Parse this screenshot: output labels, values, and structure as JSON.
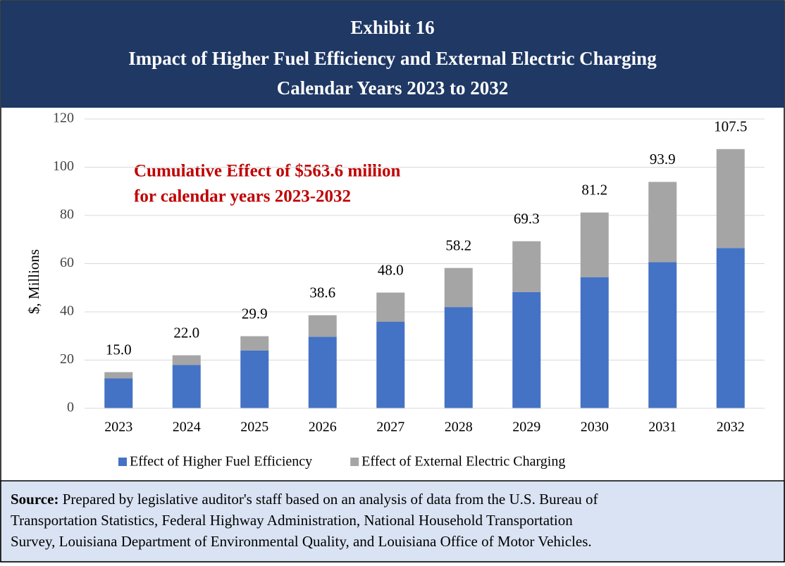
{
  "chart_data": {
    "type": "stacked_bar",
    "title": [
      "Exhibit 16",
      "Impact of Higher Fuel Efficiency and External Electric Charging",
      "Calendar Years 2023 to 2032"
    ],
    "ylabel": "$, Millions",
    "annotation": [
      "Cumulative Effect of $563.6 million",
      "for calendar years 2023-2032"
    ],
    "categories": [
      "2023",
      "2024",
      "2025",
      "2026",
      "2027",
      "2028",
      "2029",
      "2030",
      "2031",
      "2032"
    ],
    "series": [
      {
        "name": "Effect of Higher Fuel Efficiency",
        "color": "#4472c4",
        "values": [
          12.4,
          18,
          24,
          29.7,
          35.9,
          42,
          48.2,
          54.4,
          60.6,
          66.5
        ]
      },
      {
        "name": "Effect of External Electric Charging",
        "color": "#a5a5a5",
        "values": [
          2.6,
          4,
          5.9,
          8.9,
          12.1,
          16.2,
          21.1,
          26.8,
          33.3,
          41
        ]
      }
    ],
    "totals": [
      15,
      22,
      29.9,
      38.6,
      48,
      58.2,
      69.3,
      81.2,
      93.9,
      107.5
    ],
    "total_labels": [
      "15.0",
      "22.0",
      "29.9",
      "38.6",
      "48.0",
      "58.2",
      "69.3",
      "81.2",
      "93.9",
      "107.5"
    ],
    "ylim": [
      0,
      120
    ],
    "yticks": [
      0,
      20,
      40,
      60,
      80,
      100,
      120
    ],
    "grid": true,
    "legend": "bottom"
  },
  "source": {
    "label": "Source:",
    "text": [
      "Prepared by legislative auditor's staff based on an analysis of data from the U.S. Bureau of",
      "Transportation Statistics, Federal Highway Administration, National Household Transportation",
      "Survey, Louisiana Department of Environmental Quality, and Louisiana Office of Motor Vehicles."
    ]
  }
}
